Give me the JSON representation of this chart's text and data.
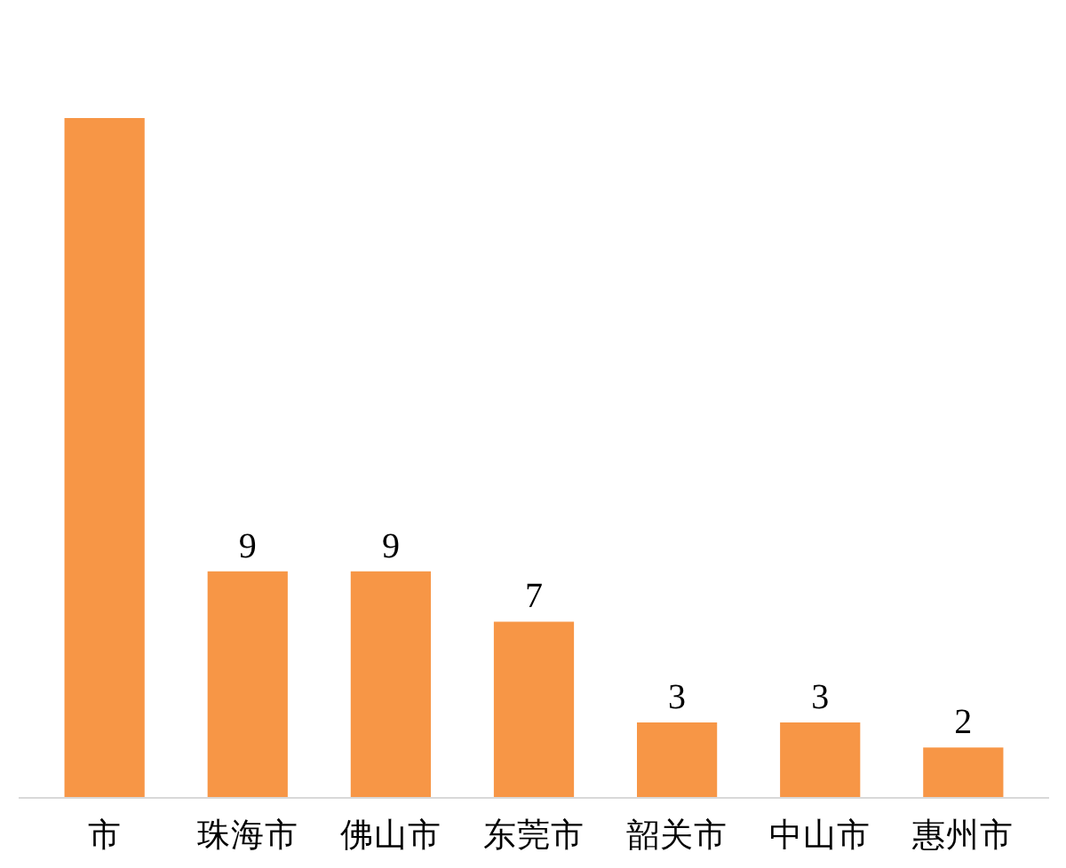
{
  "chart_data": {
    "type": "bar",
    "categories": [
      "市",
      "珠海市",
      "佛山市",
      "东莞市",
      "韶关市",
      "中山市",
      "惠州市"
    ],
    "values": [
      27,
      9,
      9,
      7,
      3,
      3,
      2
    ],
    "value_labels": [
      null,
      "9",
      "9",
      "7",
      "3",
      "3",
      "2"
    ],
    "color": "#f79646",
    "grid": false
  }
}
